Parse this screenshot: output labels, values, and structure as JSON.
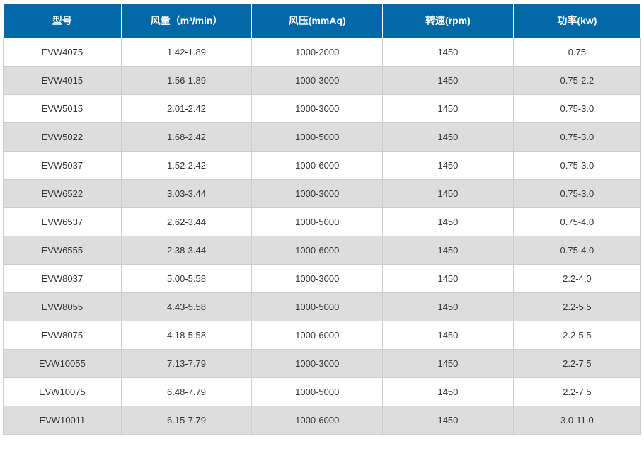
{
  "table": {
    "header_bg_color": "#0068a6",
    "header_text_color": "#ffffff",
    "row_odd_bg_color": "#ffffff",
    "row_even_bg_color": "#dddddd",
    "border_color": "#cccccc",
    "text_color": "#333333",
    "header_fontsize": 14,
    "cell_fontsize": 13,
    "columns": [
      "型号",
      "风量（m³/min）",
      "风压(mmAq)",
      "转速(rpm)",
      "功率(kw)"
    ],
    "rows": [
      [
        "EVW4075",
        "1.42-1.89",
        "1000-2000",
        "1450",
        "0.75"
      ],
      [
        "EVW4015",
        "1.56-1.89",
        "1000-3000",
        "1450",
        "0.75-2.2"
      ],
      [
        "EVW5015",
        "2.01-2.42",
        "1000-3000",
        "1450",
        "0.75-3.0"
      ],
      [
        "EVW5022",
        "1.68-2.42",
        "1000-5000",
        "1450",
        "0.75-3.0"
      ],
      [
        "EVW5037",
        "1.52-2.42",
        "1000-6000",
        "1450",
        "0.75-3.0"
      ],
      [
        "EVW6522",
        "3.03-3.44",
        "1000-3000",
        "1450",
        "0.75-3.0"
      ],
      [
        "EVW6537",
        "2.62-3.44",
        "1000-5000",
        "1450",
        "0.75-4.0"
      ],
      [
        "EVW6555",
        "2.38-3.44",
        "1000-6000",
        "1450",
        "0.75-4.0"
      ],
      [
        "EVW8037",
        "5.00-5.58",
        "1000-3000",
        "1450",
        "2.2-4.0"
      ],
      [
        "EVW8055",
        "4.43-5.58",
        "1000-5000",
        "1450",
        "2.2-5.5"
      ],
      [
        "EVW8075",
        "4.18-5.58",
        "1000-6000",
        "1450",
        "2.2-5.5"
      ],
      [
        "EVW10055",
        "7.13-7.79",
        "1000-3000",
        "1450",
        "2.2-7.5"
      ],
      [
        "EVW10075",
        "6.48-7.79",
        "1000-5000",
        "1450",
        "2.2-7.5"
      ],
      [
        "EVW10011",
        "6.15-7.79",
        "1000-6000",
        "1450",
        "3.0-11.0"
      ]
    ]
  }
}
